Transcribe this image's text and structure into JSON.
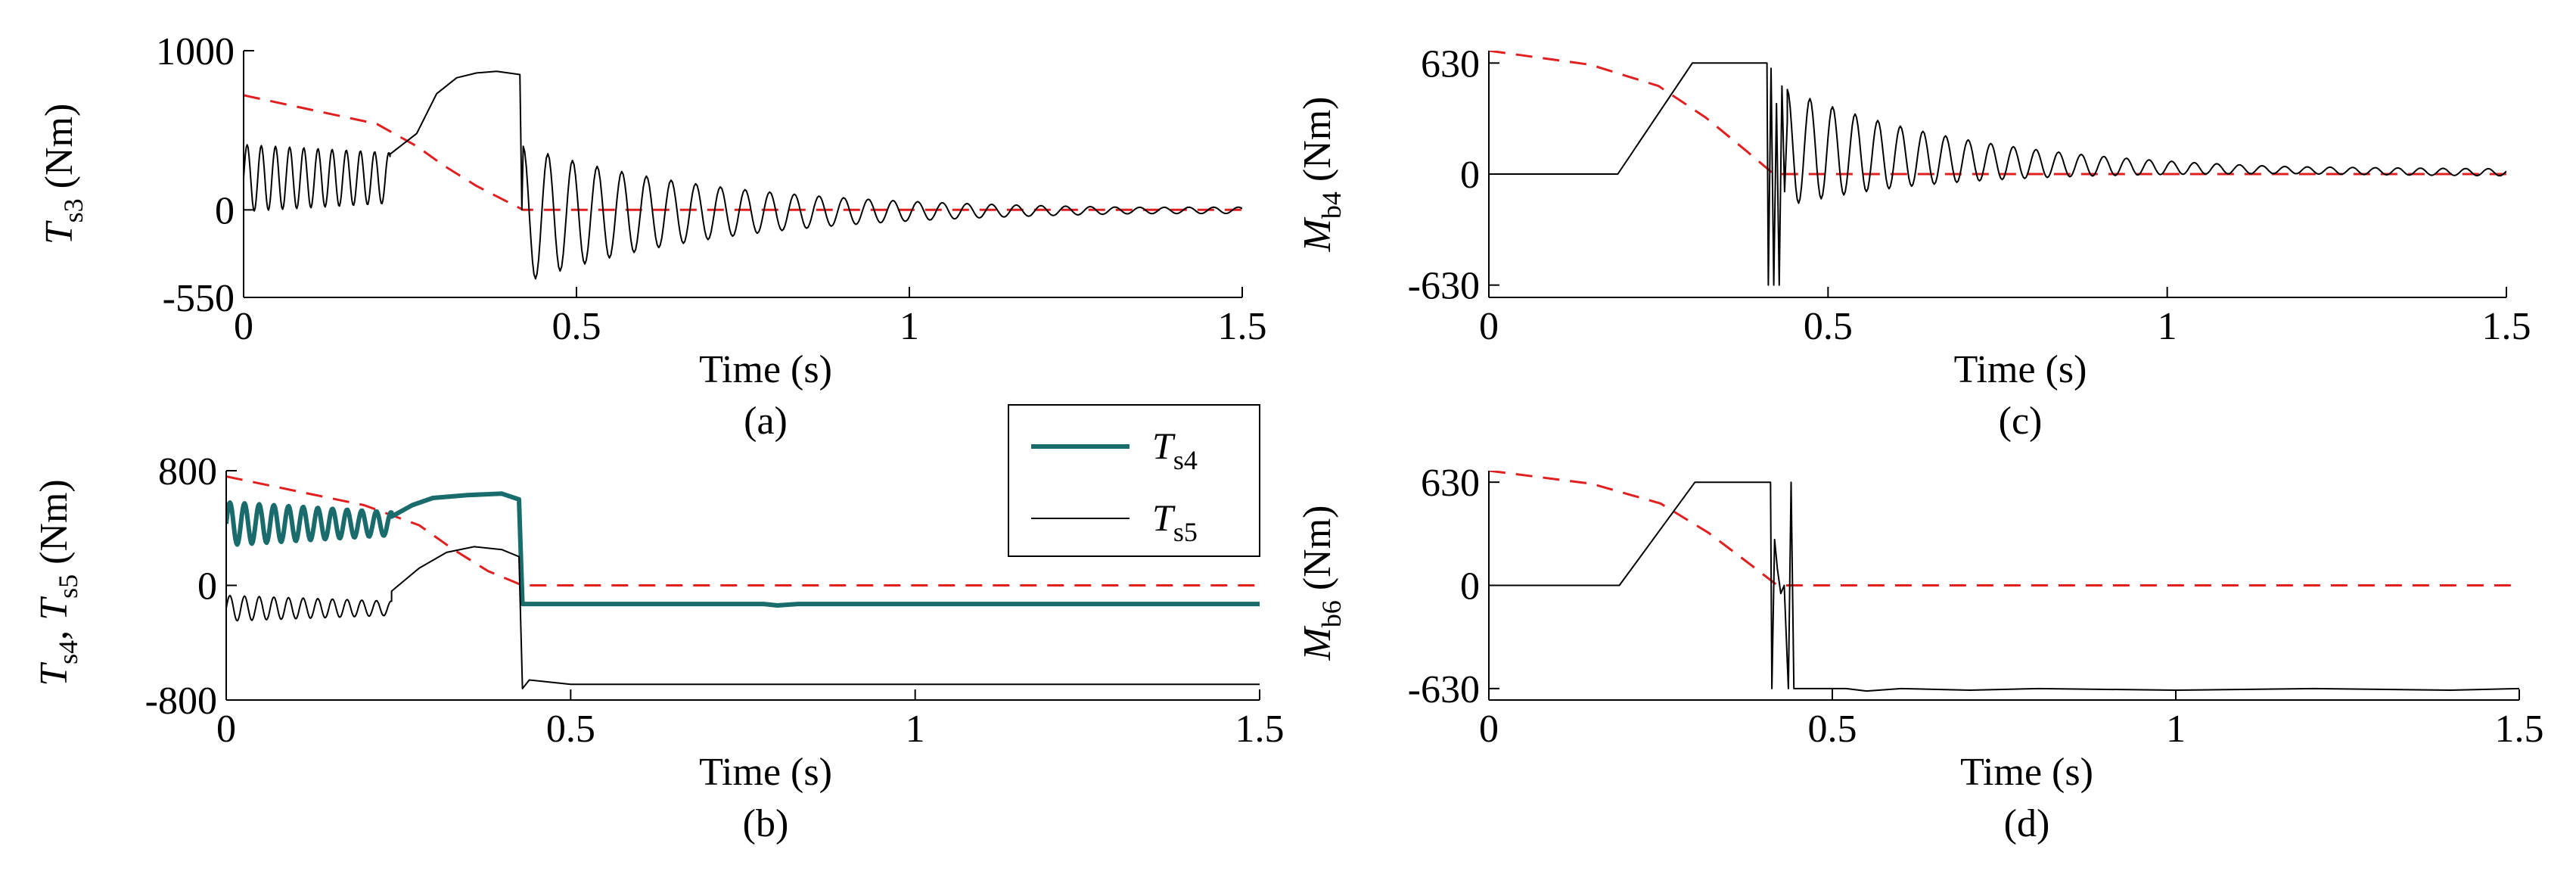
{
  "chart_data": [
    {
      "id": "a",
      "type": "line",
      "caption": "(a)",
      "xlabel": "Time (s)",
      "ylabel_main": "T",
      "ylabel_sub": "s3",
      "ylabel_unit": "(Nm)",
      "xlim": [
        0,
        1.5
      ],
      "ylim": [
        -550,
        1000
      ],
      "xticks": [
        0,
        0.5,
        1,
        1.5
      ],
      "xtick_labels": [
        "0",
        "0.5",
        "1",
        "1.5"
      ],
      "yticks": [
        -550,
        0,
        1000
      ],
      "ytick_labels": [
        "-550",
        "0",
        "1000"
      ],
      "grid": false,
      "colors": {
        "main": "#000000",
        "ref": "#e02020"
      },
      "series": [
        {
          "role": "main",
          "style": "solid",
          "color": "#000000",
          "width": 2,
          "segments": [
            {
              "kind": "osc",
              "t0": 0,
              "t1": 0.22,
              "base": 200,
              "amp0": 210,
              "amp1": 160,
              "freq": 47
            },
            {
              "kind": "pts",
              "pts": [
                [
                  0.22,
                  350
                ],
                [
                  0.26,
                  480
                ],
                [
                  0.29,
                  730
                ],
                [
                  0.32,
                  830
                ],
                [
                  0.35,
                  860
                ],
                [
                  0.38,
                  870
                ],
                [
                  0.415,
                  850
                ],
                [
                  0.418,
                  0
                ]
              ]
            },
            {
              "kind": "decay",
              "t0": 0.42,
              "t1": 1.5,
              "base": -30,
              "amp0": 430,
              "tau": 0.3,
              "freq": 27,
              "floor": 20
            }
          ]
        },
        {
          "role": "ref",
          "style": "dashed",
          "color": "#e02020",
          "width": 3,
          "pts": [
            [
              0,
              720
            ],
            [
              0.2,
              540
            ],
            [
              0.26,
              400
            ],
            [
              0.3,
              280
            ],
            [
              0.35,
              150
            ],
            [
              0.42,
              0
            ],
            [
              1.5,
              0
            ]
          ]
        }
      ]
    },
    {
      "id": "b",
      "type": "line",
      "caption": "(b)",
      "xlabel": "Time (s)",
      "ylabel_main": "T",
      "ylabel_sub": "s4",
      "ylabel_sep": ", T",
      "ylabel_sub2": "s5",
      "ylabel_unit": "(Nm)",
      "xlim": [
        0,
        1.5
      ],
      "ylim": [
        -800,
        800
      ],
      "xticks": [
        0,
        0.5,
        1,
        1.5
      ],
      "xtick_labels": [
        "0",
        "0.5",
        "1",
        "1.5"
      ],
      "yticks": [
        -800,
        0,
        800
      ],
      "ytick_labels": [
        "-800",
        "0",
        "800"
      ],
      "grid": false,
      "legend": {
        "placement": "top-right",
        "entries": [
          {
            "main": "T",
            "sub": "s4",
            "color": "#1a6b6b"
          },
          {
            "main": "T",
            "sub": "s5",
            "color": "#000000"
          }
        ]
      },
      "series": [
        {
          "name": "Ts4",
          "style": "solid",
          "color": "#1a6b6b",
          "width": 6,
          "segments": [
            {
              "kind": "osc",
              "t0": 0,
              "t1": 0.24,
              "base": 430,
              "amp0": 150,
              "amp1": 80,
              "freq": 47
            },
            {
              "kind": "pts",
              "pts": [
                [
                  0.24,
                  480
                ],
                [
                  0.27,
                  560
                ],
                [
                  0.3,
                  610
                ],
                [
                  0.35,
                  630
                ],
                [
                  0.4,
                  640
                ],
                [
                  0.425,
                  600
                ],
                [
                  0.43,
                  -130
                ],
                [
                  0.78,
                  -130
                ],
                [
                  0.8,
                  -140
                ],
                [
                  0.83,
                  -130
                ],
                [
                  1.5,
                  -130
                ]
              ]
            }
          ]
        },
        {
          "name": "Ts5",
          "style": "solid",
          "color": "#000000",
          "width": 2,
          "segments": [
            {
              "kind": "osc",
              "t0": 0,
              "t1": 0.24,
              "base": -160,
              "amp0": 90,
              "amp1": 50,
              "freq": 47
            },
            {
              "kind": "pts",
              "pts": [
                [
                  0.24,
                  -40
                ],
                [
                  0.28,
                  120
                ],
                [
                  0.32,
                  230
                ],
                [
                  0.36,
                  270
                ],
                [
                  0.4,
                  250
                ],
                [
                  0.425,
                  200
                ],
                [
                  0.43,
                  -720
                ],
                [
                  0.44,
                  -660
                ],
                [
                  0.5,
                  -690
                ],
                [
                  1.5,
                  -690
                ]
              ]
            }
          ]
        },
        {
          "role": "ref",
          "style": "dashed",
          "color": "#e02020",
          "width": 3,
          "pts": [
            [
              0,
              760
            ],
            [
              0.2,
              560
            ],
            [
              0.28,
              420
            ],
            [
              0.33,
              250
            ],
            [
              0.38,
              100
            ],
            [
              0.43,
              0
            ],
            [
              1.5,
              0
            ]
          ]
        }
      ]
    },
    {
      "id": "c",
      "type": "line",
      "caption": "(c)",
      "xlabel": "Time (s)",
      "ylabel_main": "M",
      "ylabel_sub": "b4",
      "ylabel_unit": "(Nm)",
      "xlim": [
        0,
        1.5
      ],
      "ylim": [
        -700,
        700
      ],
      "xticks": [
        0,
        0.5,
        1,
        1.5
      ],
      "xtick_labels": [
        "0",
        "0.5",
        "1",
        "1.5"
      ],
      "yticks": [
        -630,
        0,
        630
      ],
      "ytick_labels": [
        "-630",
        "0",
        "630"
      ],
      "grid": false,
      "series": [
        {
          "role": "main",
          "style": "solid",
          "color": "#000000",
          "width": 2,
          "segments": [
            {
              "kind": "pts",
              "pts": [
                [
                  0,
                  0
                ],
                [
                  0.19,
                  0
                ],
                [
                  0.3,
                  630
                ],
                [
                  0.41,
                  630
                ],
                [
                  0.412,
                  -630
                ],
                [
                  0.416,
                  600
                ],
                [
                  0.42,
                  -630
                ],
                [
                  0.424,
                  400
                ],
                [
                  0.428,
                  -630
                ],
                [
                  0.432,
                  500
                ],
                [
                  0.436,
                  -100
                ],
                [
                  0.44,
                  300
                ]
              ]
            },
            {
              "kind": "decay",
              "t0": 0.44,
              "t1": 1.5,
              "base": 150,
              "amp0": 330,
              "tau": 0.26,
              "freq": 30,
              "floor": 20
            }
          ]
        },
        {
          "role": "ref",
          "style": "dashed",
          "color": "#e02020",
          "width": 3,
          "pts": [
            [
              0,
              700
            ],
            [
              0.15,
              620
            ],
            [
              0.25,
              500
            ],
            [
              0.32,
              320
            ],
            [
              0.38,
              130
            ],
            [
              0.42,
              0
            ],
            [
              1.5,
              0
            ]
          ]
        }
      ]
    },
    {
      "id": "d",
      "type": "line",
      "caption": "(d)",
      "xlabel": "Time (s)",
      "ylabel_main": "M",
      "ylabel_sub": "b6",
      "ylabel_unit": "(Nm)",
      "xlim": [
        0,
        1.5
      ],
      "ylim": [
        -700,
        700
      ],
      "xticks": [
        0,
        0.5,
        1,
        1.5
      ],
      "xtick_labels": [
        "0",
        "0.5",
        "1",
        "1.5"
      ],
      "yticks": [
        -630,
        0,
        630
      ],
      "ytick_labels": [
        "-630",
        "0",
        "630"
      ],
      "grid": false,
      "series": [
        {
          "role": "main",
          "style": "solid",
          "color": "#000000",
          "width": 2,
          "segments": [
            {
              "kind": "pts",
              "pts": [
                [
                  0,
                  0
                ],
                [
                  0.19,
                  0
                ],
                [
                  0.3,
                  630
                ],
                [
                  0.41,
                  630
                ],
                [
                  0.412,
                  -630
                ],
                [
                  0.416,
                  280
                ],
                [
                  0.42,
                  100
                ],
                [
                  0.425,
                  -50
                ],
                [
                  0.43,
                  0
                ],
                [
                  0.436,
                  -630
                ],
                [
                  0.44,
                  630
                ],
                [
                  0.444,
                  -630
                ],
                [
                  0.52,
                  -630
                ],
                [
                  0.55,
                  -645
                ],
                [
                  0.6,
                  -630
                ],
                [
                  0.7,
                  -640
                ],
                [
                  0.8,
                  -630
                ],
                [
                  1.0,
                  -640
                ],
                [
                  1.2,
                  -630
                ],
                [
                  1.4,
                  -640
                ],
                [
                  1.5,
                  -630
                ]
              ]
            }
          ]
        },
        {
          "role": "ref",
          "style": "dashed",
          "color": "#e02020",
          "width": 3,
          "pts": [
            [
              0,
              700
            ],
            [
              0.15,
              620
            ],
            [
              0.25,
              500
            ],
            [
              0.32,
              320
            ],
            [
              0.38,
              130
            ],
            [
              0.42,
              0
            ],
            [
              1.5,
              0
            ]
          ]
        }
      ]
    }
  ]
}
